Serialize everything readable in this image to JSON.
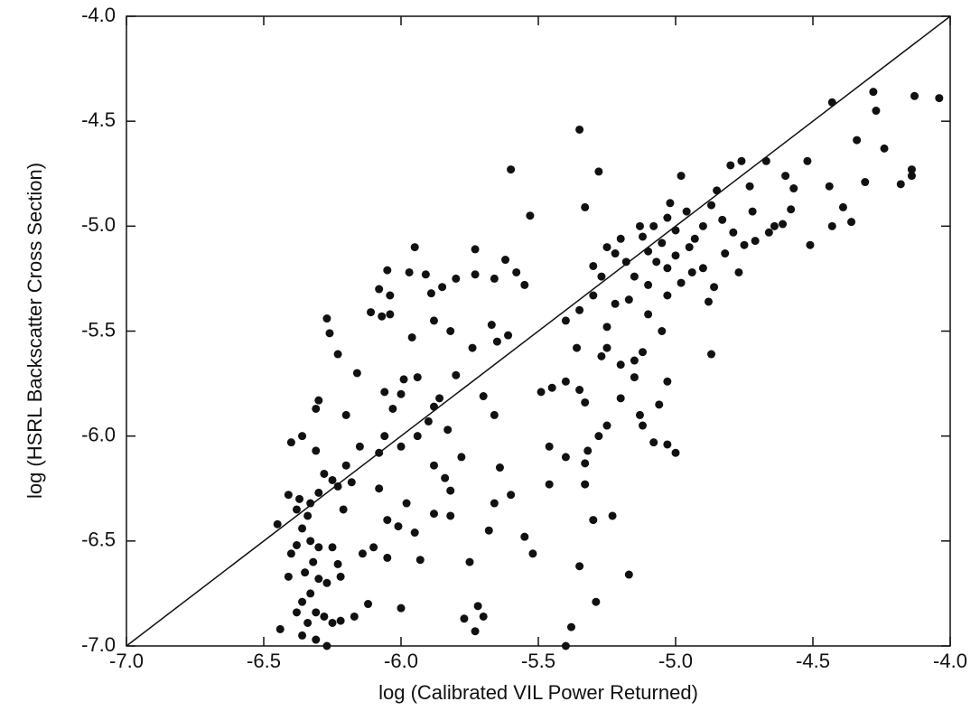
{
  "chart_data": {
    "type": "scatter",
    "x_label": "log (Calibrated VIL Power Returned)",
    "y_label": "log (HSRL Backscatter Cross Section)",
    "color": "#111111",
    "xlim": [
      -7.0,
      -4.0
    ],
    "ylim": [
      -7.0,
      -4.0
    ],
    "xticks": [
      {
        "value": -7.0,
        "label": "-7.0"
      },
      -6.5,
      {
        "value": -6.0,
        "label": "-6.0"
      },
      -5.5,
      {
        "value": -5.0,
        "label": "-5.0"
      },
      -4.5,
      {
        "value": -4.0,
        "label": "-4.0"
      }
    ],
    "yticks": [
      {
        "value": -7.0,
        "label": "-7.0"
      },
      -6.5,
      {
        "value": -6.0,
        "label": "-6.0"
      },
      -5.5,
      {
        "value": -5.0,
        "label": "-5.0"
      },
      -4.5,
      {
        "value": -4.0,
        "label": "-4.0"
      }
    ],
    "line": {
      "x": [
        -7.0,
        -4.0
      ],
      "y": [
        -7.0,
        -4.0
      ]
    },
    "x": [
      -4.43,
      -4.28,
      -4.13,
      -4.04,
      -4.27,
      -4.34,
      -4.24,
      -4.14,
      -4.14,
      -4.18,
      -4.31,
      -4.52,
      -4.6,
      -4.44,
      -4.57,
      -4.39,
      -4.36,
      -4.43,
      -4.51,
      -4.61,
      -4.67,
      -4.76,
      -4.8,
      -4.73,
      -4.85,
      -4.87,
      -4.72,
      -4.66,
      -4.71,
      -4.82,
      -4.9,
      -4.77,
      -4.86,
      -4.88,
      -4.87,
      -4.98,
      -4.96,
      -5.02,
      -5.03,
      -5.08,
      -5.05,
      -5.1,
      -5.07,
      -5.03,
      -5.0,
      -4.95,
      -4.98,
      -5.03,
      -5.1,
      -5.15,
      -5.18,
      -5.22,
      -5.12,
      -5.2,
      -5.25,
      -5.1,
      -5.05,
      -5.12,
      -5.15,
      -5.03,
      -5.06,
      -5.13,
      -5.03,
      -5.0,
      -5.08,
      -5.25,
      -5.28,
      -5.32,
      -5.33,
      -5.3,
      -5.33,
      -5.23,
      -5.17,
      -5.29,
      -5.35,
      -5.38,
      -5.4,
      -5.55,
      -5.52,
      -5.46,
      -5.45,
      -5.49,
      -5.4,
      -5.35,
      -5.33,
      -5.36,
      -5.4,
      -5.35,
      -5.3,
      -5.27,
      -5.3,
      -5.33,
      -5.28,
      -5.35,
      -5.6,
      -5.53,
      -5.62,
      -5.58,
      -5.55,
      -5.66,
      -5.73,
      -5.73,
      -5.8,
      -5.85,
      -5.89,
      -5.91,
      -5.95,
      -5.97,
      -6.05,
      -6.04,
      -6.08,
      -6.04,
      -6.07,
      -6.11,
      -5.88,
      -5.82,
      -5.96,
      -5.67,
      -5.61,
      -5.65,
      -5.74,
      -5.8,
      -5.94,
      -5.99,
      -6.0,
      -6.06,
      -5.86,
      -5.88,
      -5.9,
      -5.83,
      -5.94,
      -6.03,
      -6.06,
      -6.0,
      -6.08,
      -6.15,
      -6.16,
      -6.2,
      -6.26,
      -6.27,
      -6.23,
      -6.3,
      -6.31,
      -6.36,
      -6.4,
      -6.31,
      -6.2,
      -6.25,
      -6.28,
      -6.23,
      -6.18,
      -6.3,
      -6.33,
      -6.37,
      -6.41,
      -6.38,
      -6.34,
      -6.36,
      -6.33,
      -6.38,
      -6.3,
      -6.4,
      -6.32,
      -6.35,
      -6.41,
      -6.3,
      -6.27,
      -6.33,
      -6.36,
      -6.38,
      -6.31,
      -6.28,
      -6.34,
      -6.25,
      -6.22,
      -6.36,
      -6.31,
      -6.27,
      -6.44,
      -6.45,
      -6.23,
      -6.22,
      -6.25,
      -6.21,
      -6.17,
      -6.12,
      -6.14,
      -6.1,
      -6.05,
      -6.05,
      -6.01,
      -6.0,
      -5.93,
      -5.95,
      -5.98,
      -5.88,
      -5.84,
      -5.82,
      -5.75,
      -5.72,
      -5.7,
      -5.68,
      -5.66,
      -5.64,
      -5.6,
      -5.7,
      -5.66,
      -5.78,
      -5.88,
      -5.82,
      -5.77,
      -5.73,
      -6.08,
      -4.94,
      -4.9,
      -4.93,
      -5.0,
      -5.13,
      -5.17,
      -5.22,
      -5.25,
      -5.25,
      -5.27,
      -5.2,
      -5.15,
      -5.4,
      -5.46,
      -5.2,
      -5.12,
      -4.83,
      -4.79,
      -4.75,
      -4.58,
      -4.64
    ],
    "y": [
      -4.41,
      -4.36,
      -4.38,
      -4.39,
      -4.45,
      -4.59,
      -4.63,
      -4.73,
      -4.76,
      -4.8,
      -4.79,
      -4.69,
      -4.76,
      -4.81,
      -4.82,
      -4.91,
      -4.98,
      -5.0,
      -5.09,
      -4.99,
      -4.69,
      -4.69,
      -4.71,
      -4.81,
      -4.83,
      -4.9,
      -4.93,
      -5.03,
      -5.07,
      -5.13,
      -5.2,
      -5.22,
      -5.29,
      -5.36,
      -5.61,
      -4.76,
      -4.93,
      -4.89,
      -4.96,
      -5.0,
      -5.08,
      -5.12,
      -5.17,
      -5.2,
      -5.14,
      -5.1,
      -5.27,
      -5.33,
      -5.28,
      -5.24,
      -5.17,
      -5.13,
      -5.05,
      -5.06,
      -5.1,
      -5.42,
      -5.5,
      -5.6,
      -5.64,
      -5.74,
      -5.85,
      -5.9,
      -6.04,
      -6.08,
      -6.03,
      -5.95,
      -6.0,
      -6.07,
      -6.13,
      -6.4,
      -6.23,
      -6.38,
      -6.66,
      -6.79,
      -6.62,
      -6.91,
      -7.0,
      -6.48,
      -6.56,
      -6.23,
      -5.77,
      -5.79,
      -5.74,
      -5.78,
      -5.84,
      -5.58,
      -5.45,
      -5.4,
      -5.33,
      -5.24,
      -5.19,
      -4.91,
      -4.74,
      -4.54,
      -4.73,
      -4.95,
      -5.16,
      -5.22,
      -5.28,
      -5.25,
      -5.11,
      -5.23,
      -5.25,
      -5.29,
      -5.32,
      -5.23,
      -5.1,
      -5.22,
      -5.21,
      -5.33,
      -5.3,
      -5.42,
      -5.43,
      -5.41,
      -5.45,
      -5.5,
      -5.53,
      -5.47,
      -5.52,
      -5.55,
      -5.58,
      -5.71,
      -5.72,
      -5.73,
      -5.8,
      -5.79,
      -5.82,
      -5.86,
      -5.93,
      -5.97,
      -6.0,
      -5.87,
      -6.0,
      -6.05,
      -6.08,
      -6.05,
      -5.7,
      -5.9,
      -5.51,
      -5.44,
      -5.61,
      -5.83,
      -5.87,
      -6.0,
      -6.03,
      -6.07,
      -6.14,
      -6.21,
      -6.18,
      -6.24,
      -6.22,
      -6.27,
      -6.32,
      -6.3,
      -6.28,
      -6.35,
      -6.38,
      -6.44,
      -6.5,
      -6.52,
      -6.53,
      -6.56,
      -6.6,
      -6.65,
      -6.67,
      -6.68,
      -6.7,
      -6.75,
      -6.79,
      -6.84,
      -6.84,
      -6.86,
      -6.89,
      -6.89,
      -6.88,
      -6.95,
      -6.97,
      -7.0,
      -6.92,
      -6.42,
      -6.61,
      -6.67,
      -6.53,
      -6.35,
      -6.86,
      -6.8,
      -6.56,
      -6.53,
      -6.4,
      -6.58,
      -6.43,
      -6.82,
      -6.59,
      -6.46,
      -6.32,
      -6.37,
      -6.2,
      -6.26,
      -6.6,
      -6.81,
      -6.86,
      -6.45,
      -6.32,
      -6.15,
      -6.28,
      -5.81,
      -5.9,
      -6.1,
      -6.14,
      -6.38,
      -6.87,
      -6.93,
      -6.25,
      -5.22,
      -5.0,
      -5.06,
      -5.02,
      -5.0,
      -5.35,
      -5.37,
      -5.48,
      -5.58,
      -5.62,
      -5.66,
      -5.72,
      -6.1,
      -6.05,
      -5.82,
      -5.95,
      -4.97,
      -5.03,
      -5.09,
      -4.92,
      -5.0
    ]
  }
}
